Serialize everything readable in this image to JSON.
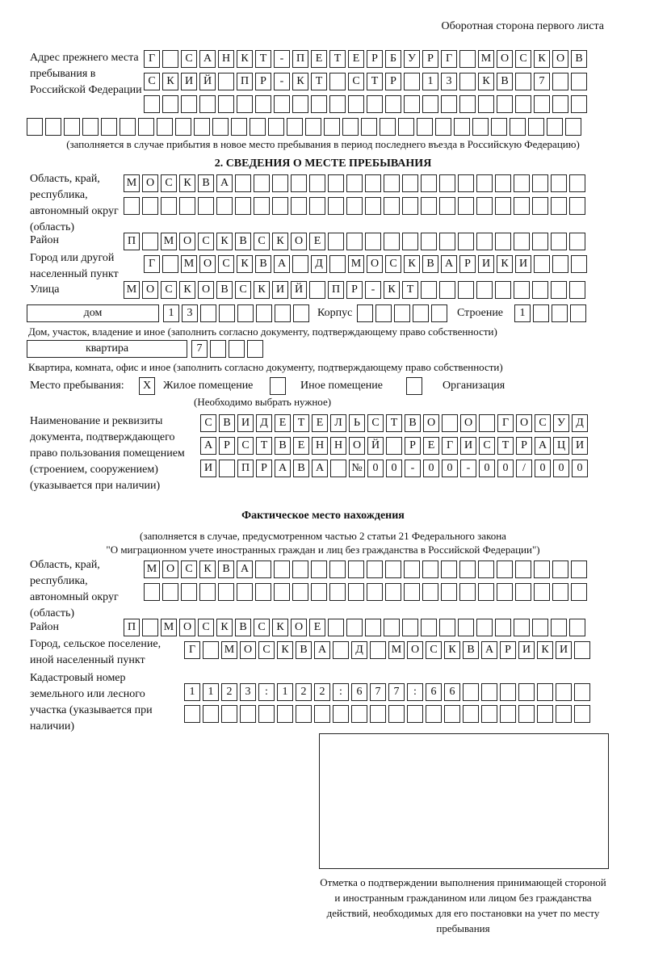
{
  "header": {
    "side_title": "Оборотная сторона первого листа"
  },
  "previous_address": {
    "label": "Адрес прежнего места пребывания в Российской Федерации",
    "rows": [
      "Г САНКТ-ПЕТЕРБУРГ МОСКОВ",
      "СКИЙ ПР-КТ СТР 13 КВ 7",
      "",
      ""
    ],
    "note": "(заполняется в случае прибытия в новое место пребывания в период последнего въезда в Российскую Федерацию)"
  },
  "section2": {
    "heading": "2. СВЕДЕНИЯ О МЕСТЕ ПРЕБЫВАНИЯ",
    "region": {
      "label": "Область, край, республика, автономный округ (область)",
      "rows": [
        "МОСКВА",
        ""
      ]
    },
    "district": {
      "label": "Район",
      "value": "П МОСКВСКОЕ"
    },
    "city": {
      "label": "Город или другой населенный пункт",
      "value": "Г МОСКВА Д МОСКВАРИКИ"
    },
    "street": {
      "label": "Улица",
      "value": "МОСКОВСКИЙ ПР-КТ"
    },
    "house": {
      "type": "дом",
      "number": "13",
      "korpus_label": "Корпус",
      "korpus": "",
      "building_label": "Строение",
      "building": "1",
      "caption": "Дом, участок, владение и иное (заполнить согласно документу, подтверждающему право собственности)"
    },
    "apartment": {
      "type": "квартира",
      "number": "7",
      "caption": "Квартира, комната, офис и иное (заполнить согласно документу, подтверждающему право собственности)"
    },
    "stay_place": {
      "label": "Место пребывания:",
      "options": [
        {
          "label": "Жилое помещение",
          "mark": "X"
        },
        {
          "label": "Иное помещение",
          "mark": ""
        },
        {
          "label": "Организация",
          "mark": ""
        }
      ],
      "hint": "(Необходимо выбрать нужное)"
    },
    "document": {
      "label": "Наименование и реквизиты документа, подтверждающего право пользования помещением (строением, сооружением) (указывается при наличии)",
      "rows": [
        "СВИДЕТЕЛЬСТВО О ГОСУД",
        "АРСТВЕННОЙ РЕГИСТРАЦИ",
        "И ПРАВА №00-00-00/000"
      ]
    }
  },
  "actual": {
    "heading": "Фактическое место нахождения",
    "note1": "(заполняется в случае, предусмотренном частью 2 статьи 21 Федерального закона",
    "note2": "\"О миграционном учете иностранных граждан и лиц без гражданства в Российской Федерации\")",
    "region": {
      "label": "Область, край, республика, автономный округ (область)",
      "rows": [
        "МОСКВА",
        ""
      ]
    },
    "district": {
      "label": "Район",
      "value": "П МОСКВСКОЕ"
    },
    "city": {
      "label": "Город, сельское поселение, иной населенный пункт",
      "value": "Г МОСКВА Д МОСКВАРИКИ"
    },
    "cadastral": {
      "label": "Кадастровый номер земельного или лесного участка (указывается при наличии)",
      "rows": [
        "1123:122:677:66",
        ""
      ]
    }
  },
  "confirmation": {
    "caption": "Отметка о подтверждении выполнения принимающей стороной и иностранным гражданином или лицом без гражданства действий, необходимых для его постановки на учет по месту пребывания"
  }
}
